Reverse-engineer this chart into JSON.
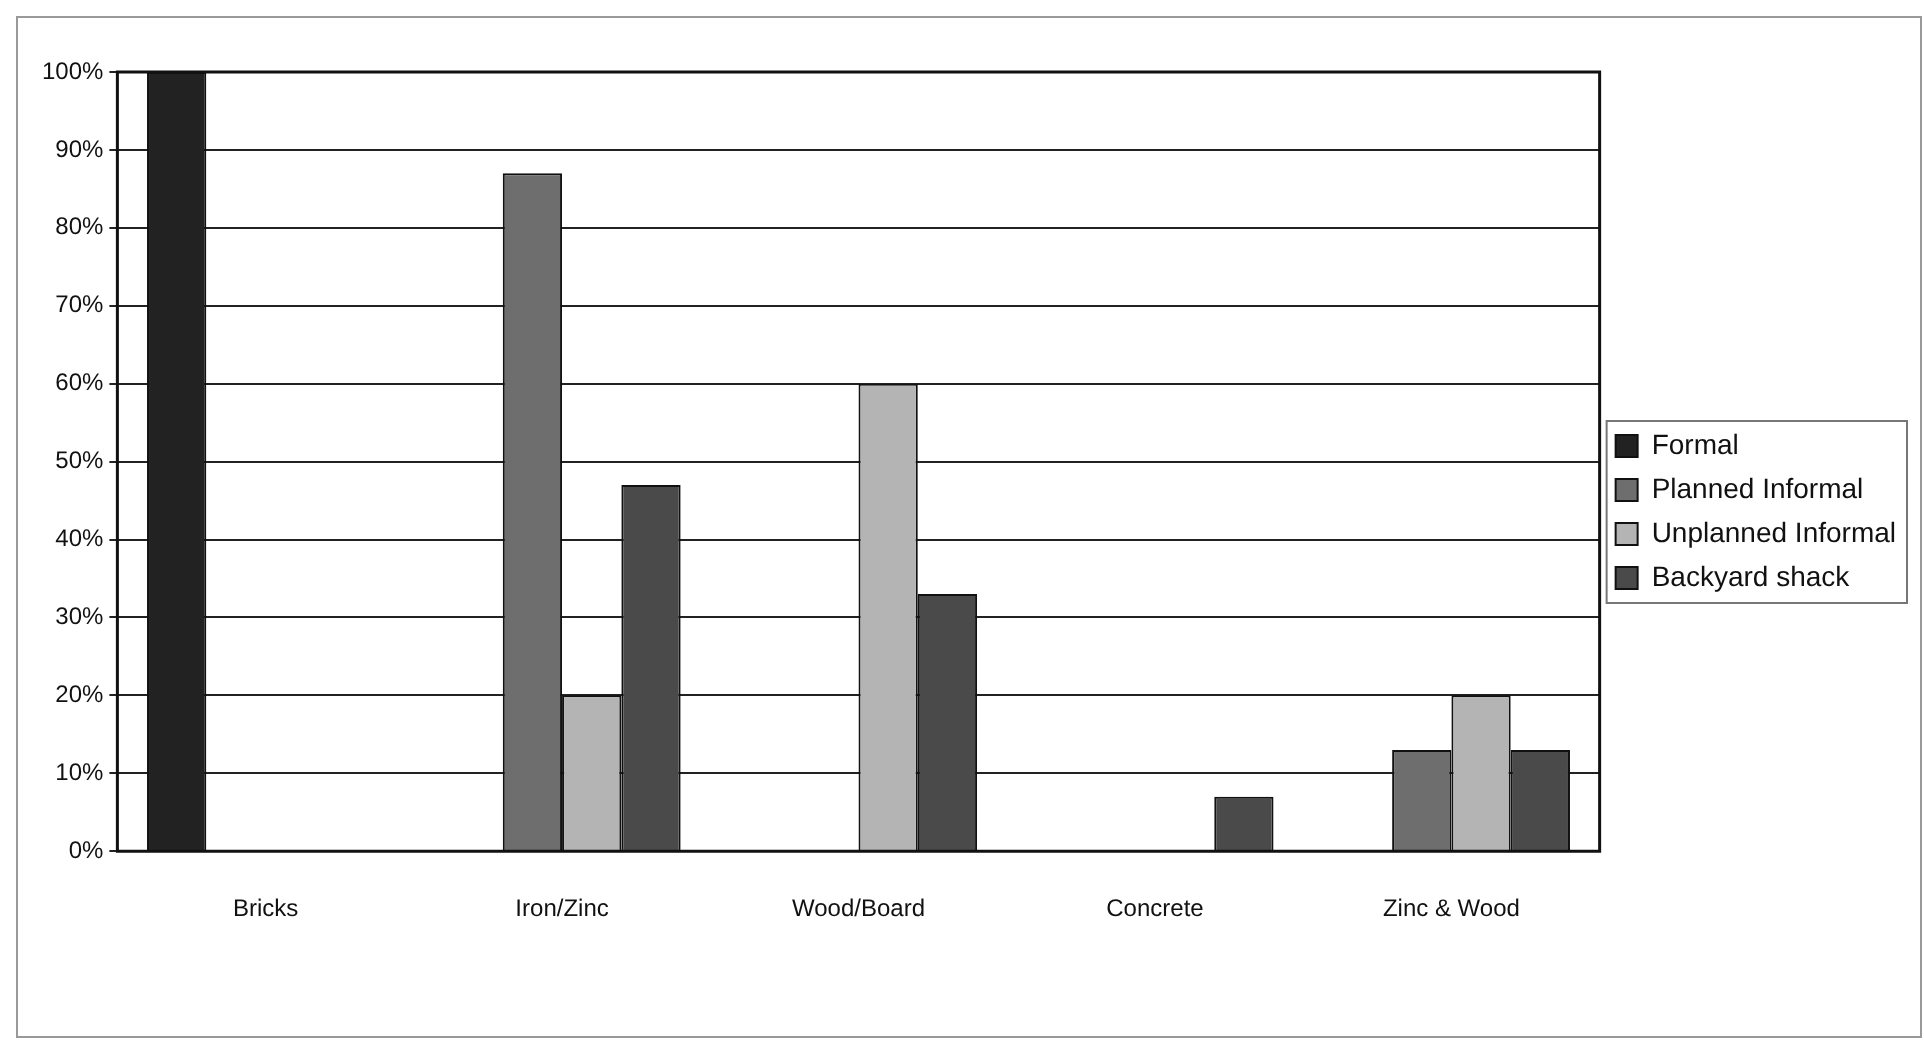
{
  "chart_data": {
    "type": "bar",
    "categories": [
      "Bricks",
      "Iron/Zinc",
      "Wood/Board",
      "Concrete",
      "Zinc & Wood"
    ],
    "series": [
      {
        "name": "Formal",
        "color": "#222222",
        "values": [
          100,
          0,
          0,
          0,
          0
        ]
      },
      {
        "name": "Planned Informal",
        "color": "#6e6e6e",
        "values": [
          0,
          87,
          0,
          0,
          13
        ]
      },
      {
        "name": "Unplanned Informal",
        "color": "#b4b4b4",
        "values": [
          0,
          20,
          60,
          0,
          20
        ]
      },
      {
        "name": "Backyard shack",
        "color": "#4a4a4a",
        "values": [
          0,
          47,
          33,
          7,
          13
        ]
      }
    ],
    "ylim": [
      0,
      100
    ],
    "yticks": [
      {
        "value": 0,
        "label": "0%"
      },
      {
        "value": 10,
        "label": "10%"
      },
      {
        "value": 20,
        "label": "20%"
      },
      {
        "value": 30,
        "label": "30%"
      },
      {
        "value": 40,
        "label": "40%"
      },
      {
        "value": 50,
        "label": "50%"
      },
      {
        "value": 60,
        "label": "60%"
      },
      {
        "value": 70,
        "label": "70%"
      },
      {
        "value": 80,
        "label": "80%"
      },
      {
        "value": 90,
        "label": "90%"
      },
      {
        "value": 100,
        "label": "100%"
      }
    ],
    "grid": "y",
    "legend": "right"
  }
}
